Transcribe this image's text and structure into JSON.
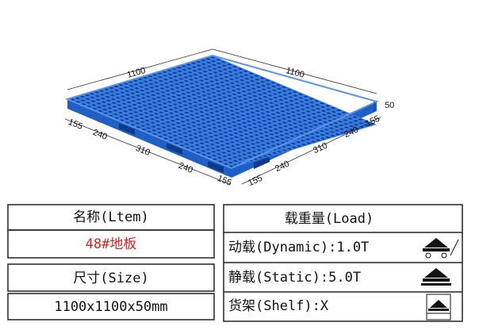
{
  "drawing": {
    "top_left_length": "1100",
    "top_right_length": "1100",
    "height": "50",
    "left_segments": [
      "155",
      "240",
      "310",
      "240",
      "155"
    ],
    "right_segments": [
      "155",
      "240",
      "310",
      "240",
      "155"
    ]
  },
  "name_table": {
    "name_header": "名称(Ltem)",
    "name_value": "48#地板",
    "size_header": "尺寸(Size)",
    "size_value": "1100x1100x50mm"
  },
  "load_table": {
    "header": "载重量(Load)",
    "rows": [
      "动载(Dynamic):1.0T",
      "静载(Static):5.0T",
      "货架(Shelf):X"
    ]
  }
}
